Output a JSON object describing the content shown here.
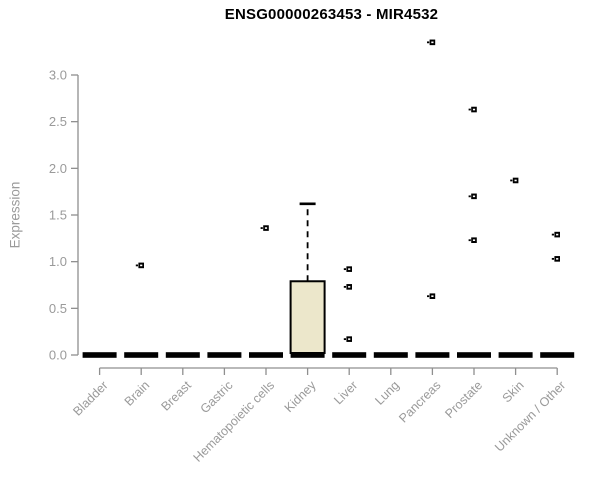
{
  "chart_data": {
    "type": "boxplot",
    "title": "ENSG00000263453 - MIR4532",
    "xlabel": "",
    "ylabel": "Expression",
    "ylim": [
      0,
      3
    ],
    "yticks": [
      "0.0",
      "0.5",
      "1.0",
      "1.5",
      "2.0",
      "2.5",
      "3.0"
    ],
    "grid": false,
    "legend": "none",
    "marker": "small-open-square",
    "categories": [
      "Bladder",
      "Brain",
      "Breast",
      "Gastric",
      "Hematopoietic cells",
      "Kidney",
      "Liver",
      "Lung",
      "Pancreas",
      "Prostate",
      "Skin",
      "Unknown / Other"
    ],
    "boxes": [
      {
        "category": "Bladder",
        "median": 0,
        "q1": 0,
        "q3": 0,
        "whisker_low": 0,
        "whisker_high": 0,
        "outliers": []
      },
      {
        "category": "Brain",
        "median": 0,
        "q1": 0,
        "q3": 0,
        "whisker_low": 0,
        "whisker_high": 0,
        "outliers": [
          0.96
        ]
      },
      {
        "category": "Breast",
        "median": 0,
        "q1": 0,
        "q3": 0,
        "whisker_low": 0,
        "whisker_high": 0,
        "outliers": []
      },
      {
        "category": "Gastric",
        "median": 0,
        "q1": 0,
        "q3": 0,
        "whisker_low": 0,
        "whisker_high": 0,
        "outliers": []
      },
      {
        "category": "Hematopoietic cells",
        "median": 0,
        "q1": 0,
        "q3": 0,
        "whisker_low": 0,
        "whisker_high": 0,
        "outliers": [
          1.36
        ]
      },
      {
        "category": "Kidney",
        "median": 0,
        "q1": 0,
        "q3": 0.79,
        "whisker_low": 0,
        "whisker_high": 1.62,
        "outliers": []
      },
      {
        "category": "Liver",
        "median": 0,
        "q1": 0,
        "q3": 0,
        "whisker_low": 0,
        "whisker_high": 0,
        "outliers": [
          0.92,
          0.73,
          0.17
        ]
      },
      {
        "category": "Lung",
        "median": 0,
        "q1": 0,
        "q3": 0,
        "whisker_low": 0,
        "whisker_high": 0,
        "outliers": []
      },
      {
        "category": "Pancreas",
        "median": 0,
        "q1": 0,
        "q3": 0,
        "whisker_low": 0,
        "whisker_high": 0,
        "outliers": [
          3.35,
          0.63
        ]
      },
      {
        "category": "Prostate",
        "median": 0,
        "q1": 0,
        "q3": 0,
        "whisker_low": 0,
        "whisker_high": 0,
        "outliers": [
          2.63,
          1.7,
          1.23
        ]
      },
      {
        "category": "Skin",
        "median": 0,
        "q1": 0,
        "q3": 0,
        "whisker_low": 0,
        "whisker_high": 0,
        "outliers": [
          1.87
        ]
      },
      {
        "category": "Unknown / Other",
        "median": 0,
        "q1": 0,
        "q3": 0,
        "whisker_low": 0,
        "whisker_high": 0,
        "outliers": [
          1.29,
          1.03
        ]
      }
    ],
    "colors": {
      "background": "#FFFFFF",
      "box_fill": "#ECE7CB",
      "box_stroke": "#000000",
      "median": "#000000",
      "whisker": "#000000",
      "point": "#000000",
      "axis": "#8F8F8F",
      "text": "#9A9A9A",
      "title": "#000000"
    }
  }
}
